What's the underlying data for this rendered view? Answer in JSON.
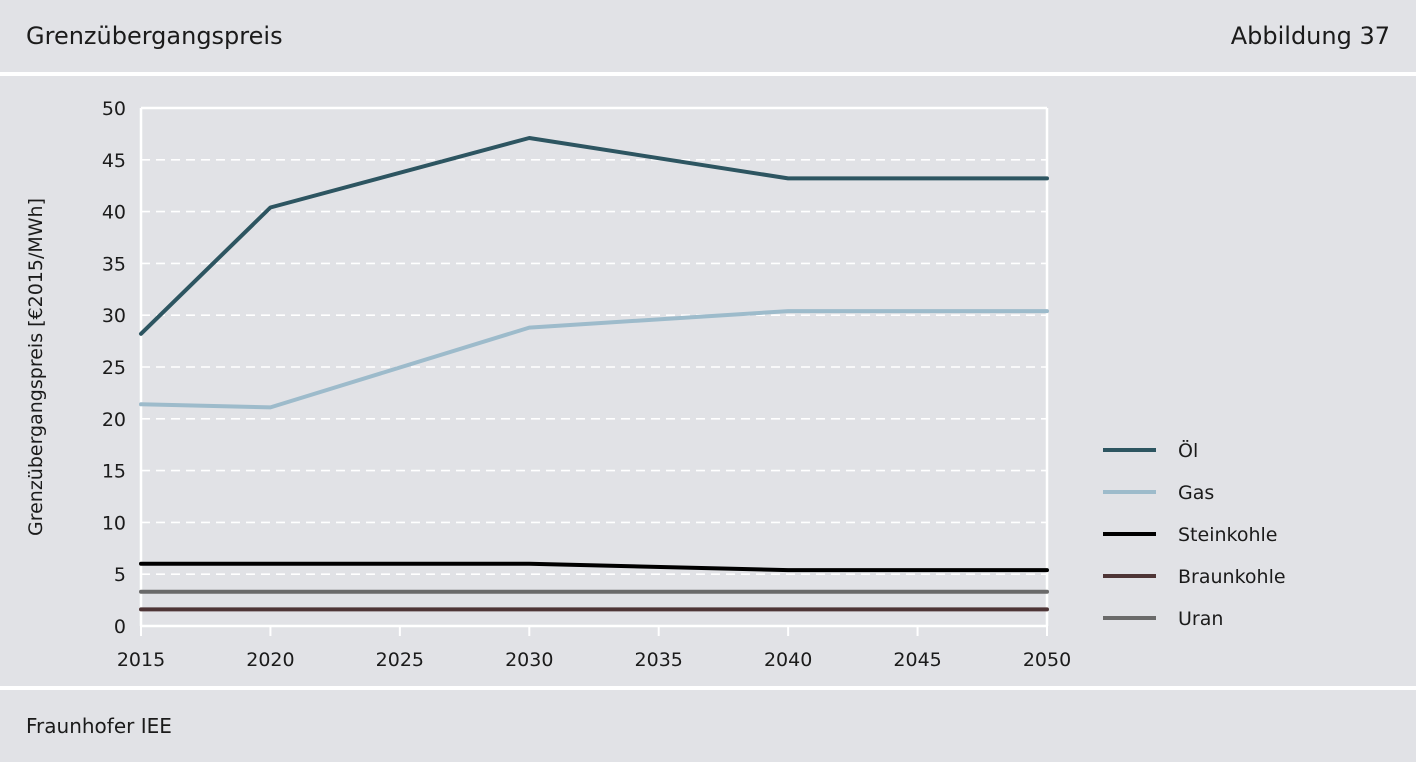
{
  "header": {
    "title": "Grenzübergangspreis",
    "figure_label": "Abbildung 37"
  },
  "footer": {
    "source": "Fraunhofer IEE"
  },
  "colors": {
    "background": "#e1e2e6",
    "grid": "#ffffff",
    "oel": "#2d5561",
    "gas": "#9dbbcb",
    "steinkohle": "#000000",
    "braunkohle": "#4e3536",
    "uran": "#6a6a6a"
  },
  "chart_data": {
    "type": "line",
    "title": "",
    "xlabel": "",
    "ylabel": "Grenzübergangspreis [€2015/MWh]",
    "x": [
      2015,
      2020,
      2030,
      2040,
      2050
    ],
    "xlim": [
      2015,
      2050
    ],
    "xticks": [
      2015,
      2020,
      2025,
      2030,
      2035,
      2040,
      2045,
      2050
    ],
    "ylim": [
      0,
      50
    ],
    "yticks": [
      0,
      5,
      10,
      15,
      20,
      25,
      30,
      35,
      40,
      45,
      50
    ],
    "grid": "horizontal dashed",
    "legend_position": "right",
    "series": [
      {
        "name": "Öl",
        "color": "#2d5561",
        "values": [
          28.2,
          40.4,
          47.1,
          43.2,
          43.2
        ]
      },
      {
        "name": "Gas",
        "color": "#9dbbcb",
        "values": [
          21.4,
          21.1,
          28.8,
          30.4,
          30.4
        ]
      },
      {
        "name": "Steinkohle",
        "color": "#000000",
        "values": [
          6.0,
          6.0,
          6.0,
          5.4,
          5.4
        ]
      },
      {
        "name": "Braunkohle",
        "color": "#4e3536",
        "values": [
          1.6,
          1.6,
          1.6,
          1.6,
          1.6
        ]
      },
      {
        "name": "Uran",
        "color": "#6a6a6a",
        "values": [
          3.3,
          3.3,
          3.3,
          3.3,
          3.3
        ]
      }
    ]
  }
}
